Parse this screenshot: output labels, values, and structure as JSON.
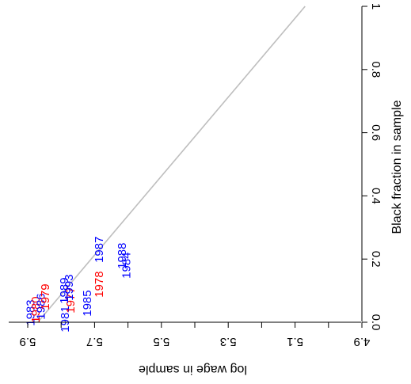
{
  "chart_data": {
    "type": "scatter",
    "title": "",
    "xlabel": "log wage in sample",
    "ylabel": "Black fraction in sample",
    "xlim": [
      5.94,
      4.9
    ],
    "ylim": [
      0.0,
      1.0
    ],
    "x_ticks": [
      5.9,
      5.7,
      5.5,
      5.3,
      5.1,
      4.9
    ],
    "x_tick_labels": [
      "5.9",
      "5.7",
      "5.5",
      "5.3",
      "5.1",
      "4.9"
    ],
    "y_ticks": [
      0.0,
      0.2,
      0.4,
      0.6,
      0.8,
      1.0
    ],
    "y_tick_labels": [
      "0.0",
      "0.2",
      "0.4",
      "0.6",
      "0.8",
      "1"
    ],
    "orientation": "rotated 180 degrees",
    "grid": false,
    "reference_line": {
      "from": [
        5.87,
        0.0
      ],
      "to": [
        5.07,
        1.0
      ],
      "color": "#bebebe"
    },
    "colors": {
      "red": "#ff0000",
      "blue": "#0000ff"
    },
    "points": [
      {
        "label": "1983",
        "x": 5.889,
        "y": 0.03,
        "color": "#0000ff"
      },
      {
        "label": "1980",
        "x": 5.874,
        "y": 0.04,
        "color": "#ff0000"
      },
      {
        "label": "1986",
        "x": 5.859,
        "y": 0.05,
        "color": "#0000ff"
      },
      {
        "label": "1979",
        "x": 5.846,
        "y": 0.08,
        "color": "#ff0000"
      },
      {
        "label": "1981",
        "x": 5.786,
        "y": 0.01,
        "color": "#0000ff"
      },
      {
        "label": "1977",
        "x": 5.77,
        "y": 0.07,
        "color": "#ff0000"
      },
      {
        "label": "1989",
        "x": 5.789,
        "y": 0.1,
        "color": "#0000ff"
      },
      {
        "label": "1993",
        "x": 5.774,
        "y": 0.11,
        "color": "#0000ff"
      },
      {
        "label": "1985",
        "x": 5.72,
        "y": 0.06,
        "color": "#0000ff"
      },
      {
        "label": "1978",
        "x": 5.684,
        "y": 0.12,
        "color": "#ff0000"
      },
      {
        "label": "1987",
        "x": 5.684,
        "y": 0.23,
        "color": "#0000ff"
      },
      {
        "label": "1988",
        "x": 5.615,
        "y": 0.21,
        "color": "#0000ff"
      },
      {
        "label": "1984",
        "x": 5.602,
        "y": 0.18,
        "color": "#0000ff"
      }
    ]
  }
}
